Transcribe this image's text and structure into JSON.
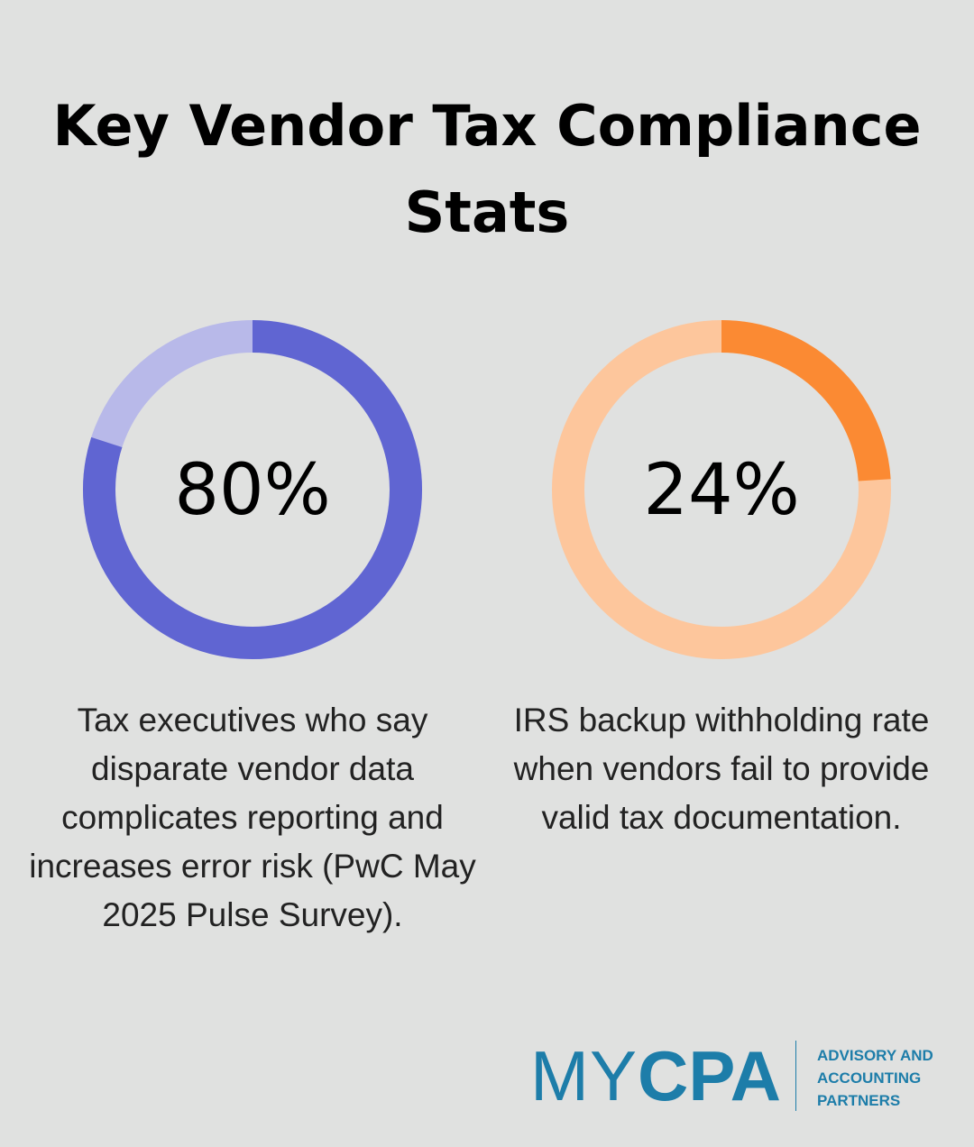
{
  "title": "Key Vendor Tax Compliance Stats",
  "chart_data": [
    {
      "type": "donut",
      "values": [
        80
      ],
      "value_labels": [
        "80%"
      ],
      "color": "#6065d2",
      "track_color": "#b8b9e9",
      "caption": "Tax executives who say disparate vendor data complicates reporting and increases error risk (PwC May 2025 Pulse Survey)."
    },
    {
      "type": "donut",
      "values": [
        24
      ],
      "value_labels": [
        "24%"
      ],
      "color": "#fb8a33",
      "track_color": "#fdc69c",
      "caption": "IRS backup withholding rate when vendors fail to provide valid tax documentation."
    }
  ],
  "logo": {
    "brand_light": "MY",
    "brand_bold": "CPA",
    "tagline": [
      "ADVISORY AND",
      "ACCOUNTING",
      "PARTNERS"
    ]
  }
}
